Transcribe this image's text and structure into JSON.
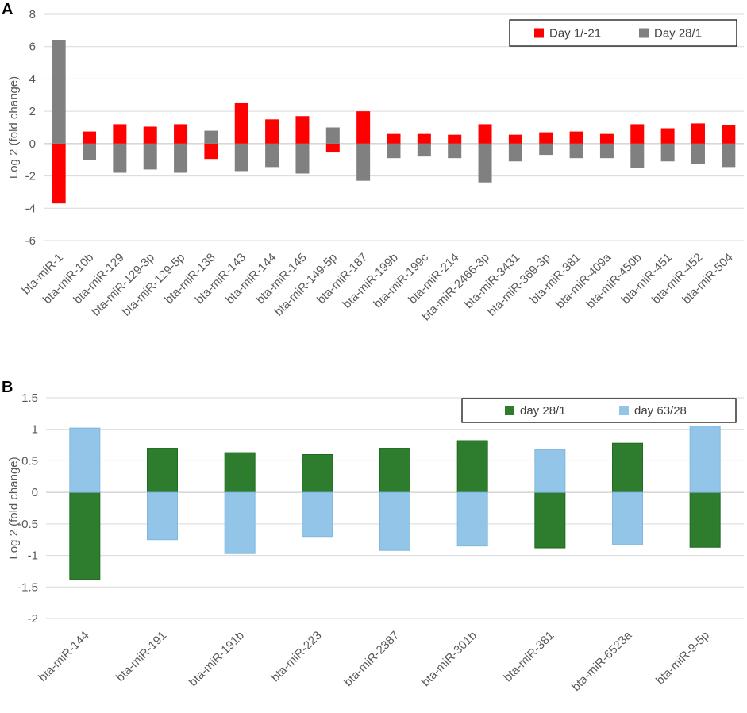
{
  "panels": [
    {
      "letter": "A",
      "chart_data": {
        "type": "bar",
        "ylabel": "Log 2 (fold change)",
        "ylim": [
          -6,
          8
        ],
        "yticks": [
          -6,
          -4,
          -2,
          0,
          2,
          4,
          6,
          8
        ],
        "grid": true,
        "legend_position": "top-right",
        "categories": [
          "bta-miR-1",
          "bta-miR-10b",
          "bta-miR-129",
          "bta-miR-129-3p",
          "bta-miR-129-5p",
          "bta-miR-138",
          "bta-miR-143",
          "bta-miR-144",
          "bta-miR-145",
          "bta-miR-149-5p",
          "bta-miR-187",
          "bta-miR-199b",
          "bta-miR-199c",
          "bta-miR-214",
          "bta-miR-2466-3p",
          "bta-miR-3431",
          "bta-miR-369-3p",
          "bta-miR-381",
          "bta-miR-409a",
          "bta-miR-450b",
          "bta-miR-451",
          "bta-miR-452",
          "bta-miR-504"
        ],
        "series": [
          {
            "name": "Day 1/-21",
            "color": "#ff0000",
            "values": [
              -3.7,
              0.75,
              1.2,
              1.05,
              1.2,
              -0.95,
              2.5,
              1.5,
              1.7,
              -0.55,
              2.0,
              0.6,
              0.6,
              0.55,
              1.2,
              0.55,
              0.7,
              0.75,
              0.6,
              1.2,
              0.95,
              1.25,
              1.15
            ]
          },
          {
            "name": "Day 28/1",
            "color": "#808080",
            "values": [
              6.4,
              -1.0,
              -1.8,
              -1.6,
              -1.8,
              0.8,
              -1.7,
              -1.45,
              -1.85,
              1.0,
              -2.3,
              -0.9,
              -0.8,
              -0.9,
              -2.4,
              -1.1,
              -0.7,
              -0.9,
              -0.9,
              -1.5,
              -1.1,
              -1.25,
              -1.45
            ]
          }
        ]
      }
    },
    {
      "letter": "B",
      "chart_data": {
        "type": "bar",
        "ylabel": "Log 2 (fold change)",
        "ylim": [
          -2,
          1.5
        ],
        "yticks": [
          -2,
          -1.5,
          -1,
          -0.5,
          0,
          0.5,
          1,
          1.5
        ],
        "grid": true,
        "legend_position": "top-right",
        "categories": [
          "bta-miR-144",
          "bta-miR-191",
          "bta-miR-191b",
          "bta-miR-223",
          "bta-miR-2387",
          "bta-miR-301b",
          "bta-miR-381",
          "bta-miR-6523a",
          "bta-miR-9-5p"
        ],
        "series": [
          {
            "name": "day 28/1",
            "color": "#2e7d2e",
            "values": [
              -1.38,
              0.7,
              0.63,
              0.6,
              0.7,
              0.82,
              -0.88,
              0.78,
              -0.87
            ]
          },
          {
            "name": "day 63/28",
            "color": "#92c5e8",
            "values": [
              1.02,
              -0.75,
              -0.97,
              -0.7,
              -0.92,
              -0.85,
              0.68,
              -0.83,
              1.05
            ]
          }
        ]
      }
    }
  ]
}
